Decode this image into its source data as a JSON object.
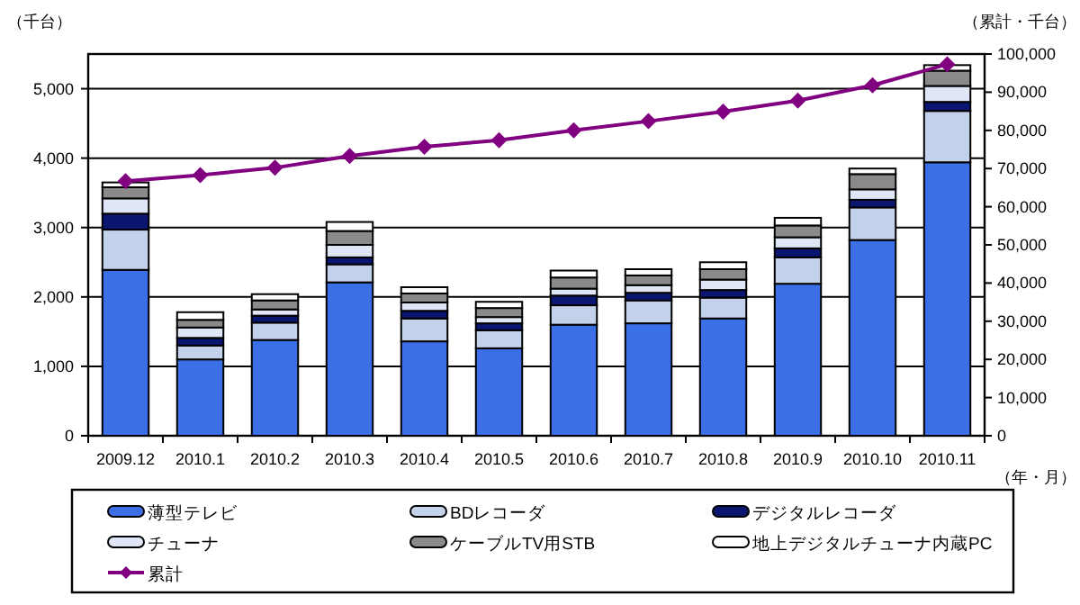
{
  "chart_data": {
    "type": "bar",
    "stacked": true,
    "categories": [
      "2009.12",
      "2010.1",
      "2010.2",
      "2010.3",
      "2010.4",
      "2010.5",
      "2010.6",
      "2010.7",
      "2010.8",
      "2010.9",
      "2010.10",
      "2010.11"
    ],
    "series": [
      {
        "name": "薄型テレビ",
        "color": "#3b6fe6",
        "values": [
          2390,
          1100,
          1380,
          2210,
          1360,
          1260,
          1600,
          1620,
          1690,
          2190,
          2820,
          3940
        ]
      },
      {
        "name": "BDレコーダ",
        "color": "#c3d2ea",
        "values": [
          580,
          200,
          250,
          260,
          330,
          260,
          280,
          330,
          300,
          380,
          470,
          740
        ]
      },
      {
        "name": "デジタルレコーダ",
        "color": "#0b1670",
        "values": [
          230,
          110,
          100,
          100,
          110,
          100,
          140,
          110,
          110,
          130,
          110,
          130
        ]
      },
      {
        "name": "チューナ",
        "color": "#dfe7f6",
        "values": [
          220,
          150,
          90,
          180,
          120,
          90,
          100,
          110,
          150,
          160,
          150,
          230
        ]
      },
      {
        "name": "ケーブルTV用STB",
        "color": "#8a8a8a",
        "values": [
          160,
          110,
          130,
          200,
          130,
          130,
          160,
          140,
          150,
          170,
          220,
          220
        ]
      },
      {
        "name": "地上デジタルチューナ内蔵PC",
        "color": "#ffffff",
        "values": [
          70,
          110,
          90,
          130,
          90,
          90,
          100,
          90,
          100,
          110,
          80,
          80
        ]
      },
      {
        "name": "累計",
        "type": "line",
        "axis": "y2",
        "color": "#800080",
        "marker": "diamond",
        "values": [
          66700,
          68300,
          70200,
          73300,
          75700,
          77400,
          80000,
          82400,
          84900,
          87800,
          91800,
          97300
        ]
      }
    ],
    "ylim": [
      0,
      5500
    ],
    "yticks": [
      0,
      {
        "value": 1000,
        "label": "1,000"
      },
      {
        "value": 2000,
        "label": "2,000"
      },
      {
        "value": 3000,
        "label": "3,000"
      },
      {
        "value": 4000,
        "label": "4,000"
      },
      {
        "value": 5000,
        "label": "5,000"
      }
    ],
    "y2lim": [
      0,
      100000
    ],
    "y2ticks": [
      0,
      {
        "value": 10000,
        "label": "10,000"
      },
      {
        "value": 20000,
        "label": "20,000"
      },
      {
        "value": 30000,
        "label": "30,000"
      },
      {
        "value": 40000,
        "label": "40,000"
      },
      {
        "value": 50000,
        "label": "50,000"
      },
      {
        "value": 60000,
        "label": "60,000"
      },
      {
        "value": 70000,
        "label": "70,000"
      },
      {
        "value": 80000,
        "label": "80,000"
      },
      {
        "value": 90000,
        "label": "90,000"
      },
      {
        "value": 100000,
        "label": "100,000"
      }
    ],
    "ylabel": "（千台）",
    "y2label": "（累計・千台）",
    "xlabel": "（年・月）",
    "grid": "y",
    "legend": "bottom"
  }
}
